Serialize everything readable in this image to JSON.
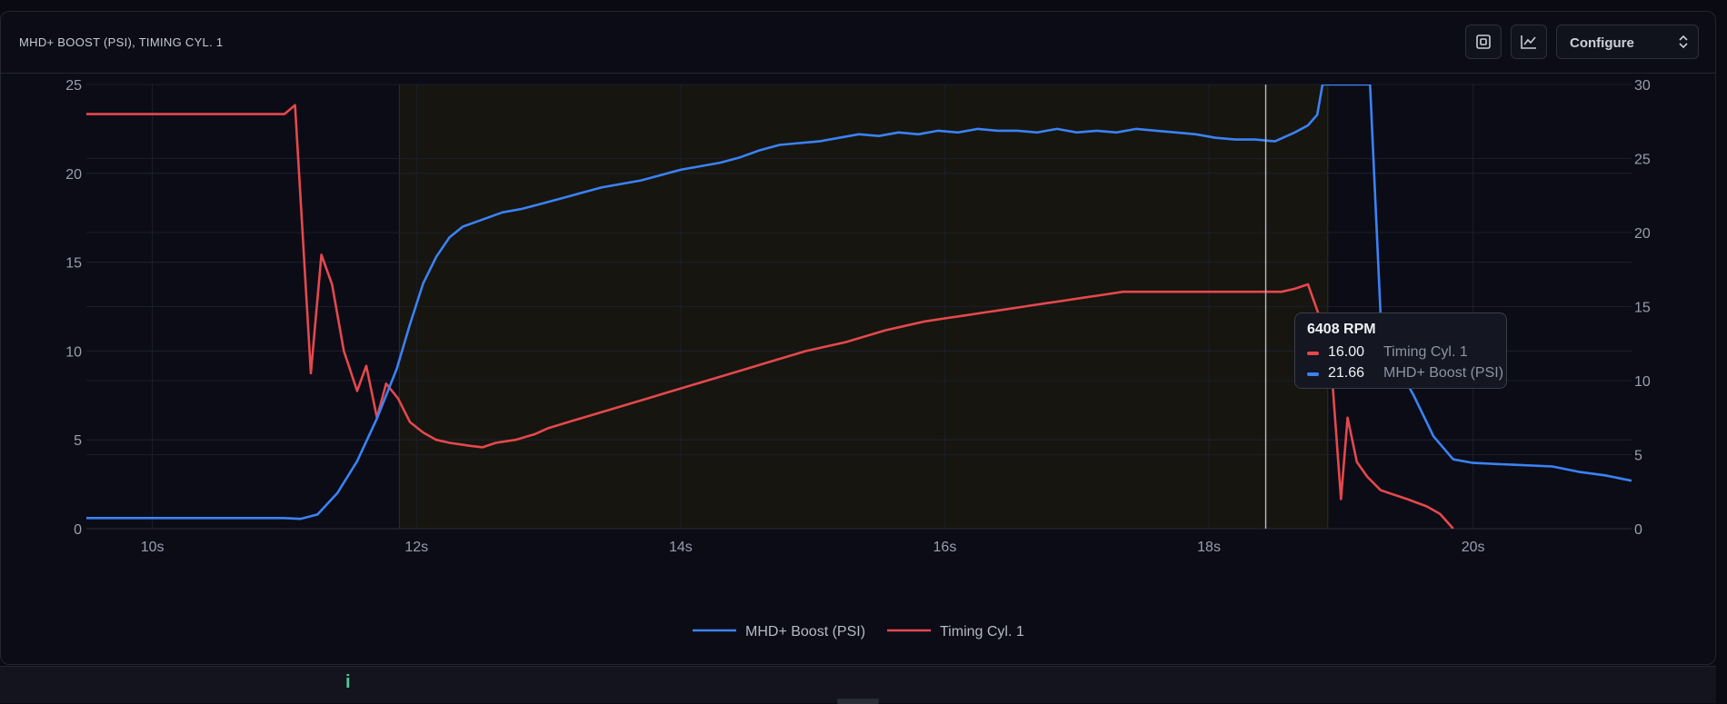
{
  "header": {
    "title": "MHD+ BOOST (PSI), TIMING CYL. 1",
    "configure_label": "Configure"
  },
  "tooltip": {
    "title": "6408 RPM",
    "rows": [
      {
        "value": "16.00",
        "name": "Timing Cyl. 1",
        "color": "#e5484d"
      },
      {
        "value": "21.66",
        "name": "MHD+ Boost (PSI)",
        "color": "#3b82f6"
      }
    ]
  },
  "footer": {
    "indicator": "i"
  },
  "chart_data": {
    "type": "line",
    "xlim": [
      9.5,
      21.2
    ],
    "x_ticks": [
      10,
      12,
      14,
      16,
      18,
      20
    ],
    "x_tick_labels": [
      "10s",
      "12s",
      "14s",
      "16s",
      "18s",
      "20s"
    ],
    "y_left": {
      "range": [
        0,
        25
      ],
      "ticks": [
        0,
        5,
        10,
        15,
        20,
        25
      ]
    },
    "y_right": {
      "range": [
        0,
        30
      ],
      "ticks": [
        0,
        5,
        10,
        15,
        20,
        25,
        30
      ]
    },
    "highlight_range": [
      11.87,
      18.9
    ],
    "cursor_x": 18.43,
    "grid": true,
    "legend_position": "bottom",
    "colors": {
      "boost": "#3b82f6",
      "timing": "#e5484d"
    },
    "series": [
      {
        "name": "MHD+ Boost (PSI)",
        "axis": "left",
        "color": "#3b82f6",
        "x": [
          9.5,
          11.0,
          11.12,
          11.25,
          11.4,
          11.55,
          11.7,
          11.85,
          11.95,
          12.05,
          12.15,
          12.25,
          12.35,
          12.5,
          12.65,
          12.8,
          12.95,
          13.1,
          13.25,
          13.4,
          13.55,
          13.7,
          13.85,
          14.0,
          14.15,
          14.3,
          14.45,
          14.6,
          14.75,
          14.9,
          15.05,
          15.2,
          15.35,
          15.5,
          15.65,
          15.8,
          15.95,
          16.1,
          16.25,
          16.4,
          16.55,
          16.7,
          16.85,
          17.0,
          17.15,
          17.3,
          17.45,
          17.6,
          17.75,
          17.9,
          18.05,
          18.2,
          18.35,
          18.5,
          18.65,
          18.75,
          18.82,
          18.86,
          18.9,
          19.1,
          19.22,
          19.3,
          19.4,
          19.55,
          19.7,
          19.85,
          20.0,
          20.3,
          20.6,
          20.8,
          21.0,
          21.2
        ],
        "y": [
          0.6,
          0.6,
          0.55,
          0.8,
          2.0,
          3.8,
          6.2,
          9.0,
          11.5,
          13.8,
          15.3,
          16.4,
          17.0,
          17.4,
          17.8,
          18.0,
          18.3,
          18.6,
          18.9,
          19.2,
          19.4,
          19.6,
          19.9,
          20.2,
          20.4,
          20.6,
          20.9,
          21.3,
          21.6,
          21.7,
          21.8,
          22.0,
          22.2,
          22.1,
          22.3,
          22.2,
          22.4,
          22.3,
          22.5,
          22.4,
          22.4,
          22.3,
          22.5,
          22.3,
          22.4,
          22.3,
          22.5,
          22.4,
          22.3,
          22.2,
          22.0,
          21.9,
          21.9,
          21.8,
          22.3,
          22.7,
          23.3,
          25.0,
          25.0,
          25.0,
          25.0,
          12.0,
          9.5,
          7.5,
          5.2,
          3.9,
          3.7,
          3.6,
          3.5,
          3.2,
          3.0,
          2.7
        ]
      },
      {
        "name": "Timing Cyl. 1",
        "axis": "right",
        "color": "#e5484d",
        "x": [
          9.5,
          11.0,
          11.08,
          11.2,
          11.28,
          11.36,
          11.45,
          11.55,
          11.62,
          11.7,
          11.77,
          11.86,
          11.95,
          12.05,
          12.15,
          12.25,
          12.4,
          12.5,
          12.6,
          12.75,
          12.9,
          13.0,
          13.15,
          13.3,
          13.45,
          13.6,
          13.75,
          13.9,
          14.05,
          14.2,
          14.35,
          14.5,
          14.65,
          14.8,
          14.95,
          15.1,
          15.25,
          15.4,
          15.55,
          15.7,
          15.85,
          16.0,
          16.15,
          16.3,
          16.45,
          16.6,
          16.75,
          16.9,
          17.05,
          17.2,
          17.35,
          17.5,
          17.65,
          17.8,
          17.95,
          18.1,
          18.25,
          18.4,
          18.55,
          18.65,
          18.75,
          18.85,
          18.93,
          19.0,
          19.05,
          19.12,
          19.2,
          19.3,
          19.5,
          19.65,
          19.75,
          19.85
        ],
        "y": [
          28.0,
          28.0,
          28.6,
          10.5,
          18.5,
          16.5,
          12.0,
          9.3,
          11.0,
          7.5,
          9.8,
          8.8,
          7.2,
          6.5,
          6.0,
          5.8,
          5.6,
          5.5,
          5.8,
          6.0,
          6.4,
          6.8,
          7.2,
          7.6,
          8.0,
          8.4,
          8.8,
          9.2,
          9.6,
          10.0,
          10.4,
          10.8,
          11.2,
          11.6,
          12.0,
          12.3,
          12.6,
          13.0,
          13.4,
          13.7,
          14.0,
          14.2,
          14.4,
          14.6,
          14.8,
          15.0,
          15.2,
          15.4,
          15.6,
          15.8,
          16.0,
          16.0,
          16.0,
          16.0,
          16.0,
          16.0,
          16.0,
          16.0,
          16.0,
          16.2,
          16.5,
          14.0,
          10.5,
          2.0,
          7.5,
          4.5,
          3.5,
          2.6,
          2.0,
          1.5,
          1.0,
          0.0
        ]
      }
    ]
  }
}
